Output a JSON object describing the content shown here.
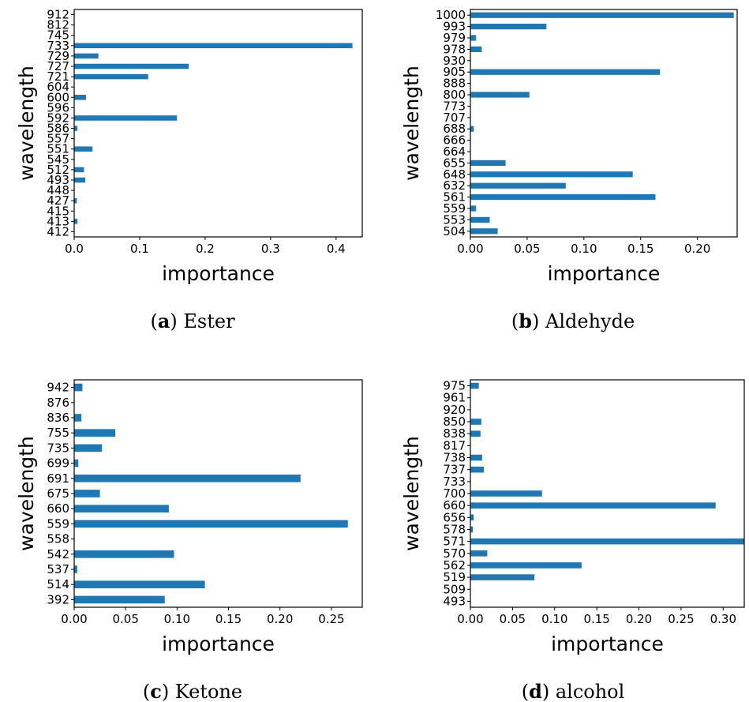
{
  "chart_data": [
    {
      "type": "bar",
      "orientation": "horizontal",
      "caption_letter": "a",
      "caption_text": "Ester",
      "xlabel": "importance",
      "ylabel": "wavelength",
      "xlim": [
        0,
        0.44
      ],
      "xticks": [
        "0.0",
        "0.1",
        "0.2",
        "0.3",
        "0.4"
      ],
      "xtick_values": [
        0,
        0.1,
        0.2,
        0.3,
        0.4
      ],
      "categories": [
        "412",
        "413",
        "415",
        "427",
        "448",
        "493",
        "512",
        "545",
        "551",
        "557",
        "586",
        "592",
        "596",
        "600",
        "604",
        "721",
        "727",
        "729",
        "733",
        "745",
        "812",
        "912"
      ],
      "values": [
        0.0,
        0.005,
        0.0,
        0.004,
        0.0,
        0.017,
        0.015,
        0.0,
        0.028,
        0.0,
        0.005,
        0.157,
        0.0,
        0.018,
        0.0,
        0.113,
        0.175,
        0.037,
        0.425,
        0.0,
        0.0,
        0.0
      ]
    },
    {
      "type": "bar",
      "orientation": "horizontal",
      "caption_letter": "b",
      "caption_text": "Aldehyde",
      "xlabel": "importance",
      "ylabel": "wavelength",
      "xlim": [
        0,
        0.235
      ],
      "xticks": [
        "0.00",
        "0.05",
        "0.10",
        "0.15",
        "0.20"
      ],
      "xtick_values": [
        0,
        0.05,
        0.1,
        0.15,
        0.2
      ],
      "categories": [
        "504",
        "553",
        "559",
        "561",
        "632",
        "648",
        "655",
        "664",
        "666",
        "688",
        "707",
        "773",
        "800",
        "888",
        "905",
        "930",
        "978",
        "979",
        "993",
        "1000"
      ],
      "values": [
        0.024,
        0.017,
        0.005,
        0.163,
        0.084,
        0.143,
        0.031,
        0.0,
        0.0,
        0.003,
        0.0,
        0.0,
        0.052,
        0.0,
        0.167,
        0.0,
        0.01,
        0.005,
        0.067,
        0.232
      ]
    },
    {
      "type": "bar",
      "orientation": "horizontal",
      "caption_letter": "c",
      "caption_text": "Ketone",
      "xlabel": "importance",
      "ylabel": "wavelength",
      "xlim": [
        0,
        0.28
      ],
      "xticks": [
        "0.00",
        "0.05",
        "0.10",
        "0.15",
        "0.20",
        "0.25"
      ],
      "xtick_values": [
        0,
        0.05,
        0.1,
        0.15,
        0.2,
        0.25
      ],
      "categories": [
        "392",
        "514",
        "537",
        "542",
        "558",
        "559",
        "660",
        "675",
        "691",
        "699",
        "735",
        "755",
        "836",
        "876",
        "942"
      ],
      "values": [
        0.088,
        0.127,
        0.003,
        0.097,
        0.0,
        0.266,
        0.092,
        0.025,
        0.22,
        0.004,
        0.027,
        0.04,
        0.007,
        0.0,
        0.008
      ]
    },
    {
      "type": "bar",
      "orientation": "horizontal",
      "caption_letter": "d",
      "caption_text": "alcohol",
      "xlabel": "importance",
      "ylabel": "wavelength",
      "xlim": [
        0,
        0.325
      ],
      "xticks": [
        "0.00",
        "0.05",
        "0.10",
        "0.15",
        "0.20",
        "0.25",
        "0.30"
      ],
      "xtick_values": [
        0,
        0.05,
        0.1,
        0.15,
        0.2,
        0.25,
        0.3
      ],
      "categories": [
        "493",
        "509",
        "519",
        "562",
        "570",
        "571",
        "578",
        "656",
        "660",
        "700",
        "733",
        "737",
        "738",
        "817",
        "838",
        "850",
        "920",
        "961",
        "975"
      ],
      "values": [
        0.0,
        0.0,
        0.076,
        0.132,
        0.02,
        0.325,
        0.003,
        0.004,
        0.291,
        0.085,
        0.0,
        0.016,
        0.014,
        0.0,
        0.012,
        0.013,
        0.0,
        0.0,
        0.01
      ]
    }
  ]
}
